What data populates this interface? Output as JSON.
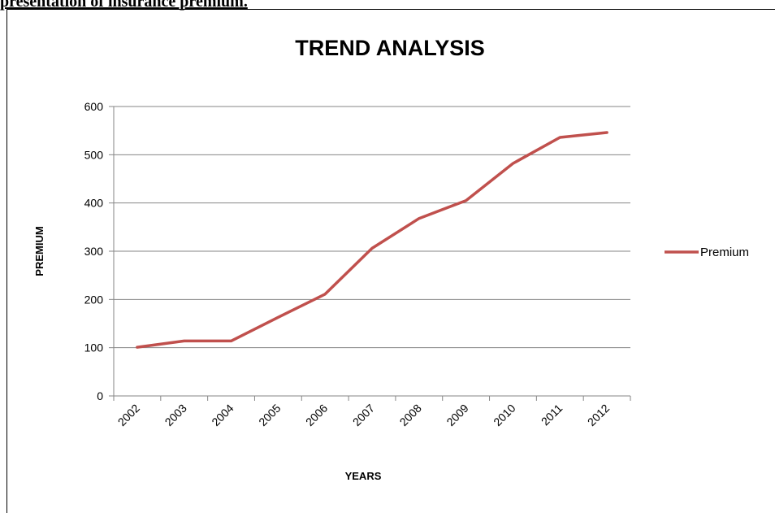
{
  "page": {
    "heading": "presentation of insurance premium."
  },
  "chart_data": {
    "type": "line",
    "title": "TREND ANALYSIS",
    "xlabel": "YEARS",
    "ylabel": "PREMIUM",
    "categories": [
      "2002",
      "2003",
      "2004",
      "2005",
      "2006",
      "2007",
      "2008",
      "2009",
      "2010",
      "2011",
      "2012"
    ],
    "series": [
      {
        "name": "Premium",
        "values": [
          101,
          114,
          114,
          163,
          211,
          306,
          368,
          405,
          482,
          536,
          546
        ],
        "color": "#C0504D"
      }
    ],
    "ylim": [
      0,
      600
    ],
    "yticks": [
      0,
      100,
      200,
      300,
      400,
      500,
      600
    ],
    "grid": true,
    "legend": "right"
  }
}
